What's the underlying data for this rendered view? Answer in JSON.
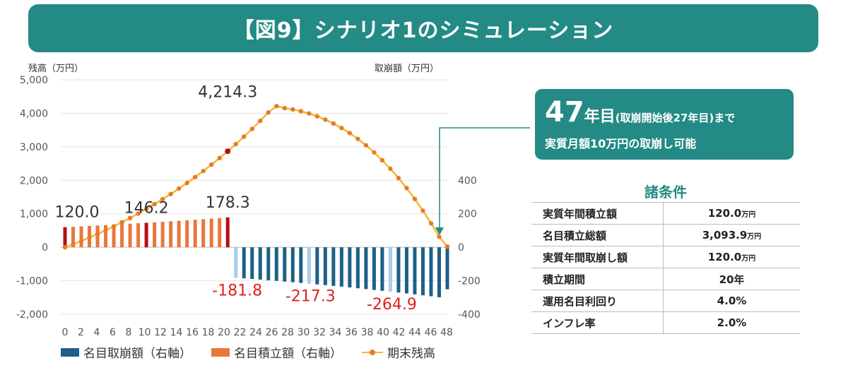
{
  "title": "【図9】シナリオ1のシミュレーション",
  "chart_data": {
    "type": "bar+line",
    "left_axis_title": "残高（万円）",
    "right_axis_title": "取崩額（万円）",
    "left_ylim": [
      -2000,
      5000
    ],
    "left_ticks": [
      "5,000",
      "4,000",
      "3,000",
      "2,000",
      "1,000",
      "0",
      "-1,000",
      "-2,000"
    ],
    "right_ticks": [
      "400",
      "200",
      "0",
      "-200",
      "-400"
    ],
    "x_ticks": [
      "0",
      "2",
      "4",
      "6",
      "8",
      "10",
      "12",
      "14",
      "16",
      "18",
      "20",
      "22",
      "24",
      "26",
      "28",
      "30",
      "32",
      "34",
      "36",
      "38",
      "40",
      "42",
      "44",
      "46",
      "48"
    ],
    "balance": [
      0,
      90,
      188,
      290,
      397,
      510,
      626,
      748,
      874,
      1006,
      1144,
      1287,
      1436,
      1591,
      1752,
      1920,
      2095,
      2277,
      2466,
      2663,
      2868,
      3081,
      3303,
      3534,
      3775,
      4025,
      4214.3,
      4155,
      4116,
      4063,
      3995,
      3912,
      3812,
      3695,
      3561,
      3408,
      3236,
      3045,
      2833,
      2600,
      2345,
      2068,
      1767,
      1442,
      1092,
      716,
      313,
      20
    ],
    "accumulation": [
      120.0,
      122.4,
      124.8,
      127.3,
      129.9,
      132.5,
      135.1,
      137.8,
      140.6,
      143.4,
      146.2,
      149.1,
      152.1,
      155.2,
      158.3,
      161.4,
      164.6,
      167.9,
      171.3,
      174.8,
      178.3
    ],
    "withdrawal": [
      -181.8,
      -185.4,
      -189.1,
      -192.9,
      -196.8,
      -200.7,
      -204.7,
      -208.8,
      -213.0,
      -217.3,
      -221.6,
      -226.1,
      -230.6,
      -235.2,
      -239.9,
      -244.7,
      -249.6,
      -254.6,
      -259.7,
      -264.9,
      -270.2,
      -275.6,
      -281.1,
      -286.7,
      -292.5,
      -298.3,
      -251.0
    ],
    "highlight_labels": {
      "peak": "4,214.3",
      "acc": [
        "120.0",
        "146.2",
        "178.3"
      ],
      "wd": [
        "-181.8",
        "-217.3",
        "-264.9"
      ]
    },
    "series_names": [
      "名目取崩額（右軸）",
      "名目積立額（右軸）",
      "期末残高"
    ],
    "colors": {
      "withdrawal": "#1e5f87",
      "withdrawal_highlight": "#a8cde8",
      "accumulation": "#e8773a",
      "accumulation_highlight": "#b40f12",
      "balance_line": "#f5b82e",
      "balance_marker": "#e87a2a",
      "peak_marker": "#b40f12"
    }
  },
  "callout": {
    "years": "47",
    "year_word": "年目",
    "paren": "(取崩開始後27年目)まで",
    "line2": "実質月額10万円の取崩し可能"
  },
  "conditions": {
    "title": "諸条件",
    "rows": [
      {
        "label": "実質年間積立額",
        "value": "120.0",
        "unit": "万円"
      },
      {
        "label": "名目積立総額",
        "value": "3,093.9",
        "unit": "万円"
      },
      {
        "label": "実質年間取崩し額",
        "value": "120.0",
        "unit": "万円"
      },
      {
        "label": "積立期間",
        "value": "20年",
        "unit": ""
      },
      {
        "label": "運用名目利回り",
        "value": "4.0%",
        "unit": ""
      },
      {
        "label": "インフレ率",
        "value": "2.0%",
        "unit": ""
      }
    ]
  }
}
